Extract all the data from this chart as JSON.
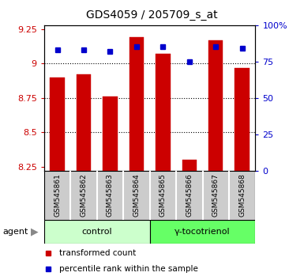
{
  "title": "GDS4059 / 205709_s_at",
  "samples": [
    "GSM545861",
    "GSM545862",
    "GSM545863",
    "GSM545864",
    "GSM545865",
    "GSM545866",
    "GSM545867",
    "GSM545868"
  ],
  "red_values": [
    8.9,
    8.92,
    8.76,
    9.19,
    9.07,
    8.3,
    9.17,
    8.97
  ],
  "blue_values": [
    83,
    83,
    82,
    85,
    85,
    75,
    85,
    84
  ],
  "ylim_left": [
    8.22,
    9.28
  ],
  "ylim_right": [
    0,
    100
  ],
  "yticks_left": [
    8.25,
    8.5,
    8.75,
    9.0,
    9.25
  ],
  "yticks_right": [
    0,
    25,
    50,
    75,
    100
  ],
  "ytick_labels_left": [
    "8.25",
    "8.5",
    "8.75",
    "9",
    "9.25"
  ],
  "ytick_labels_right": [
    "0",
    "25",
    "50",
    "75",
    "100%"
  ],
  "bar_color": "#cc0000",
  "dot_color": "#0000cc",
  "bar_width": 0.55,
  "bar_bottom": 8.22,
  "dotted_lines": [
    9.0,
    8.75,
    8.5
  ],
  "groups": [
    {
      "label": "control",
      "indices": [
        0,
        1,
        2,
        3
      ],
      "color": "#ccffcc"
    },
    {
      "label": "γ-tocotrienol",
      "indices": [
        4,
        5,
        6,
        7
      ],
      "color": "#66ff66"
    }
  ],
  "agent_label": "agent",
  "legend_items": [
    {
      "color": "#cc0000",
      "label": "transformed count"
    },
    {
      "color": "#0000cc",
      "label": "percentile rank within the sample"
    }
  ],
  "plot_bg": "#ffffff",
  "label_area_bg": "#cccccc",
  "left_axis_color": "#cc0000",
  "right_axis_color": "#0000cc"
}
